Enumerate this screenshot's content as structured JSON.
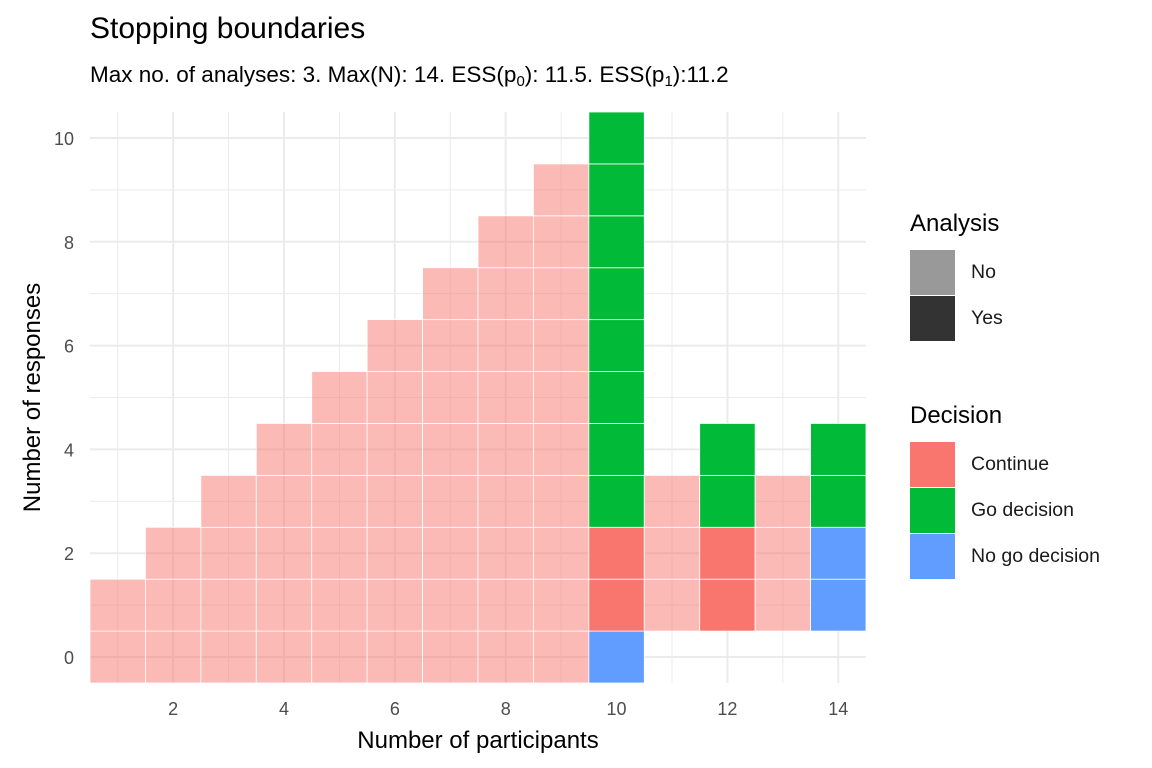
{
  "title": "Stopping boundaries",
  "subtitle": {
    "prefix": "Max no. of analyses: 3. Max(N): 14. ESS(p",
    "sub0": "0",
    "mid": "): 11.5. ESS(p",
    "sub1": "1",
    "suffix": "):11.2"
  },
  "legends": {
    "analysis": {
      "title": "Analysis",
      "items": [
        {
          "label": "No",
          "color": "#999999"
        },
        {
          "label": "Yes",
          "color": "#333333"
        }
      ]
    },
    "decision": {
      "title": "Decision",
      "items": [
        {
          "label": "Continue",
          "color": "#F8766D"
        },
        {
          "label": "Go decision",
          "color": "#00BA38"
        },
        {
          "label": "No go decision",
          "color": "#619CFF"
        }
      ]
    }
  },
  "chart_data": {
    "type": "heatmap",
    "xlabel": "Number of participants",
    "ylabel": "Number of responses",
    "xlim": [
      0.5,
      14.5
    ],
    "ylim": [
      -0.5,
      10.5
    ],
    "x_ticks": [
      2,
      4,
      6,
      8,
      10,
      12,
      14
    ],
    "y_ticks": [
      0,
      2,
      4,
      6,
      8,
      10
    ],
    "grid": true,
    "legend_position": "right",
    "colors": {
      "Continue": "#F8766D",
      "Go decision": "#00BA38",
      "No go decision": "#619CFF"
    },
    "cells": [
      {
        "n": 1,
        "ranges": [
          {
            "from": 0,
            "to": 1,
            "decision": "Continue",
            "analysis": "No"
          }
        ]
      },
      {
        "n": 2,
        "ranges": [
          {
            "from": 0,
            "to": 2,
            "decision": "Continue",
            "analysis": "No"
          }
        ]
      },
      {
        "n": 3,
        "ranges": [
          {
            "from": 0,
            "to": 3,
            "decision": "Continue",
            "analysis": "No"
          }
        ]
      },
      {
        "n": 4,
        "ranges": [
          {
            "from": 0,
            "to": 4,
            "decision": "Continue",
            "analysis": "No"
          }
        ]
      },
      {
        "n": 5,
        "ranges": [
          {
            "from": 0,
            "to": 5,
            "decision": "Continue",
            "analysis": "No"
          }
        ]
      },
      {
        "n": 6,
        "ranges": [
          {
            "from": 0,
            "to": 6,
            "decision": "Continue",
            "analysis": "No"
          }
        ]
      },
      {
        "n": 7,
        "ranges": [
          {
            "from": 0,
            "to": 7,
            "decision": "Continue",
            "analysis": "No"
          }
        ]
      },
      {
        "n": 8,
        "ranges": [
          {
            "from": 0,
            "to": 8,
            "decision": "Continue",
            "analysis": "No"
          }
        ]
      },
      {
        "n": 9,
        "ranges": [
          {
            "from": 0,
            "to": 9,
            "decision": "Continue",
            "analysis": "No"
          }
        ]
      },
      {
        "n": 10,
        "ranges": [
          {
            "from": 0,
            "to": 0,
            "decision": "No go decision",
            "analysis": "Yes"
          },
          {
            "from": 1,
            "to": 2,
            "decision": "Continue",
            "analysis": "Yes"
          },
          {
            "from": 3,
            "to": 10,
            "decision": "Go decision",
            "analysis": "Yes"
          }
        ]
      },
      {
        "n": 11,
        "ranges": [
          {
            "from": 1,
            "to": 3,
            "decision": "Continue",
            "analysis": "No"
          }
        ]
      },
      {
        "n": 12,
        "ranges": [
          {
            "from": 1,
            "to": 2,
            "decision": "Continue",
            "analysis": "Yes"
          },
          {
            "from": 3,
            "to": 4,
            "decision": "Go decision",
            "analysis": "Yes"
          }
        ]
      },
      {
        "n": 13,
        "ranges": [
          {
            "from": 1,
            "to": 3,
            "decision": "Continue",
            "analysis": "No"
          }
        ]
      },
      {
        "n": 14,
        "ranges": [
          {
            "from": 1,
            "to": 2,
            "decision": "No go decision",
            "analysis": "Yes"
          },
          {
            "from": 3,
            "to": 4,
            "decision": "Go decision",
            "analysis": "Yes"
          }
        ]
      }
    ]
  }
}
